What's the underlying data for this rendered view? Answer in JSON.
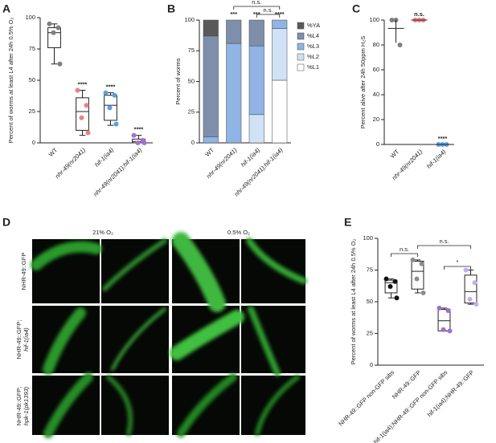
{
  "chart_data": [
    {
      "panel": "A",
      "type": "box",
      "ylabel": "Percent of worms at least L4 after 24h 0.5% O₂",
      "categories": [
        "WT",
        "nhr-49(nr2041)",
        "hif-1(ia4)",
        "nhr-49(nr2041);hif-1(ia4)"
      ],
      "colors": [
        "#7f7f7f",
        "#e8837f",
        "#5b9fe0",
        "#a66fcf"
      ],
      "points": [
        [
          95,
          92,
          88,
          63
        ],
        [
          42,
          30,
          20,
          8
        ],
        [
          40,
          38,
          28,
          15
        ],
        [
          6,
          2,
          0,
          0
        ]
      ],
      "boxes": [
        [
          63,
          76,
          88,
          92,
          95
        ],
        [
          6,
          10,
          25,
          36,
          42
        ],
        [
          14,
          18,
          30,
          38,
          40
        ],
        [
          0,
          0,
          1,
          3,
          6
        ]
      ],
      "annotations": [
        null,
        "****",
        "****",
        "****"
      ],
      "ylim": [
        0,
        100
      ],
      "yticks": [
        0,
        25,
        50,
        75,
        100
      ]
    },
    {
      "panel": "B",
      "type": "stacked_bar",
      "ylabel": "Percent of worms",
      "categories": [
        "WT",
        "nhr-49(nr2041)",
        "hif-1(ia4)",
        "nhr-49(nr2041);hif-1(ia4)"
      ],
      "series": [
        {
          "name": "%YA",
          "color": "#595959",
          "values": [
            13,
            0,
            0,
            0
          ]
        },
        {
          "name": "%L4",
          "color": "#7d8fab",
          "values": [
            82,
            19,
            21,
            0
          ]
        },
        {
          "name": "%L3",
          "color": "#90b4e3",
          "values": [
            5,
            81,
            56,
            7
          ]
        },
        {
          "name": "%L2",
          "color": "#cfe2f6",
          "values": [
            0,
            0,
            23,
            42
          ]
        },
        {
          "name": "%L1",
          "color": "#ffffff",
          "values": [
            0,
            0,
            0,
            51
          ]
        }
      ],
      "annotations": [
        null,
        "***",
        "***",
        "****"
      ],
      "brackets": [
        {
          "between": [
            1,
            3
          ],
          "text": "n.s."
        },
        {
          "between": [
            2,
            3
          ],
          "text": "n.s."
        }
      ],
      "ylim": [
        0,
        100
      ],
      "yticks": [
        0,
        25,
        50,
        75,
        100
      ]
    },
    {
      "panel": "C",
      "type": "dot",
      "ylabel": "Percent alive after 24h 50ppm H₂S",
      "categories": [
        "WT",
        "nhr-49(nr2041)",
        "hif-1(ia4)"
      ],
      "colors": [
        "#7f7f7f",
        "#f08080",
        "#5b9fe0"
      ],
      "points": [
        [
          100,
          100,
          80
        ],
        [
          100,
          100,
          100
        ],
        [
          0,
          0,
          0
        ]
      ],
      "means": [
        93.3,
        100,
        0
      ],
      "errors": [
        11.5,
        0,
        0
      ],
      "annotations": [
        null,
        "n.s.",
        "****"
      ],
      "ylim": [
        0,
        100
      ],
      "yticks": [
        0,
        20,
        40,
        60,
        80,
        100
      ]
    },
    {
      "panel": "E",
      "type": "box",
      "ylabel": "Percent of worms at least L4 after 24h 0.5% O₂",
      "categories": [
        "NHR-49::GFP non-GFP sibs",
        "NHR-49::GFP",
        "hif-1(ia4);NHR-49::GFP non-GFP sibs",
        "hif-1(ia4);NHR-49::GFP"
      ],
      "colors": [
        "#111111",
        "#8c8c8c",
        "#9d6fd0",
        "#c4aef0"
      ],
      "points": [
        [
          68,
          66,
          62,
          53
        ],
        [
          83,
          80,
          68,
          57
        ],
        [
          45,
          43,
          28,
          27
        ],
        [
          75,
          65,
          52,
          48
        ]
      ],
      "boxes": [
        [
          53,
          57,
          65,
          67,
          68
        ],
        [
          57,
          60,
          74,
          82,
          83
        ],
        [
          27,
          27,
          35,
          44,
          45
        ],
        [
          48,
          49,
          58,
          71,
          75
        ]
      ],
      "brackets": [
        {
          "between": [
            0,
            1
          ],
          "text": "n.s."
        },
        {
          "between": [
            1,
            3
          ],
          "text": "n.s."
        },
        {
          "between": [
            2,
            3
          ],
          "text": "*"
        }
      ],
      "ylim": [
        0,
        100
      ],
      "yticks": [
        0,
        25,
        50,
        75,
        100
      ]
    }
  ],
  "microscopy": {
    "panel": "D",
    "columns": [
      "21% O₂",
      "0.5% O₂"
    ],
    "rows": [
      [
        "NHR-49::GFP"
      ],
      [
        "NHR-49::GFP;",
        "hif-1(ia4)"
      ],
      [
        "NHR-49::GFP;",
        "hpk-1(pk1393)"
      ]
    ]
  }
}
